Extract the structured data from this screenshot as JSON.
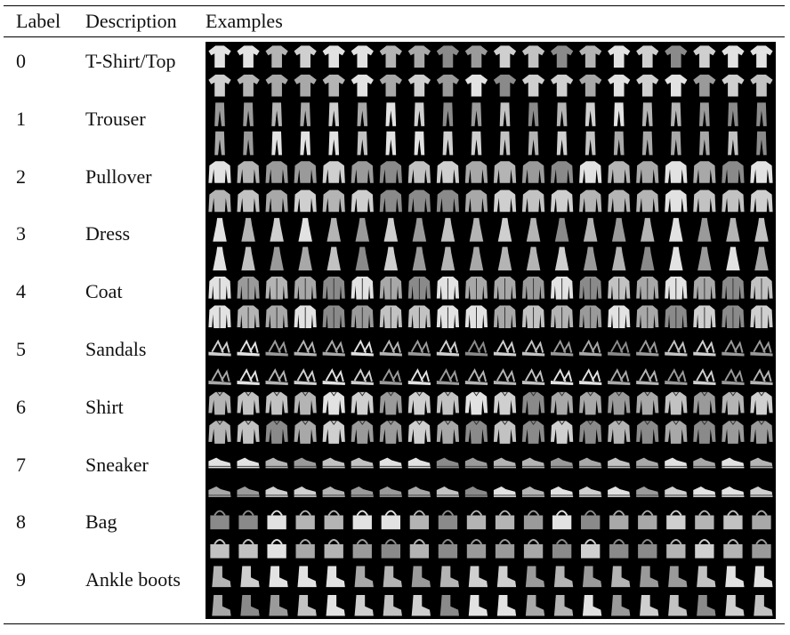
{
  "table": {
    "headers": {
      "label": "Label",
      "description": "Description",
      "examples": "Examples"
    },
    "rows": [
      {
        "label": "0",
        "description": "T-Shirt/Top",
        "kind": "tshirt"
      },
      {
        "label": "1",
        "description": "Trouser",
        "kind": "trouser"
      },
      {
        "label": "2",
        "description": "Pullover",
        "kind": "pullover"
      },
      {
        "label": "3",
        "description": "Dress",
        "kind": "dress"
      },
      {
        "label": "4",
        "description": "Coat",
        "kind": "coat"
      },
      {
        "label": "5",
        "description": "Sandals",
        "kind": "sandal"
      },
      {
        "label": "6",
        "description": "Shirt",
        "kind": "shirt"
      },
      {
        "label": "7",
        "description": "Sneaker",
        "kind": "sneaker"
      },
      {
        "label": "8",
        "description": "Bag",
        "kind": "bag"
      },
      {
        "label": "9",
        "description": "Ankle boots",
        "kind": "boot"
      }
    ]
  },
  "grid": {
    "columns": 20,
    "rows_per_class": 2,
    "background": "#000000",
    "glyph_colors": [
      "#b4b4b4",
      "#cfcfcf",
      "#9a9a9a",
      "#e2e2e2",
      "#8a8a8a",
      "#c2c2c2",
      "#a8a8a8"
    ]
  }
}
